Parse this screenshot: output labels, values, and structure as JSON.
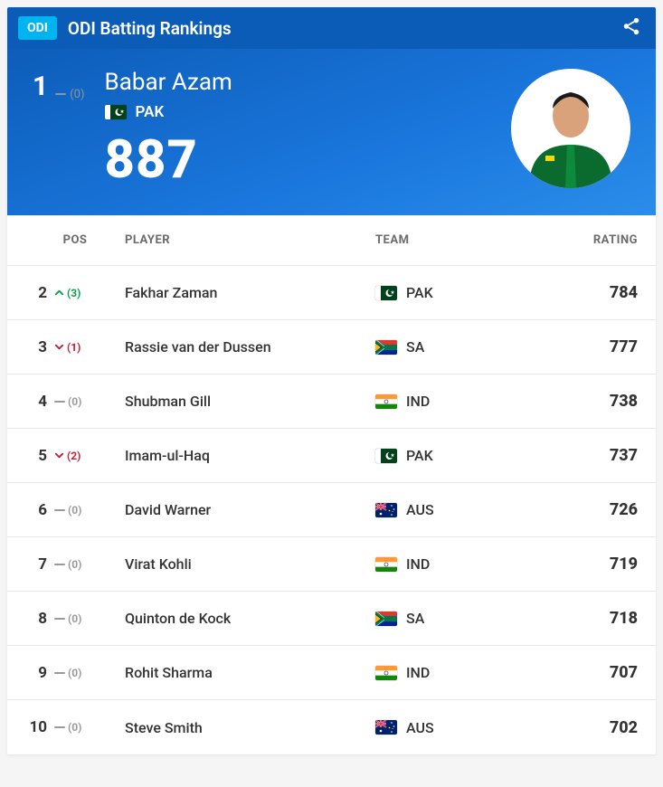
{
  "header": {
    "badge": "ODI",
    "title": "ODI Batting Rankings"
  },
  "hero": {
    "rank": "1",
    "move_dir": "same",
    "move_val": "(0)",
    "player": "Babar Azam",
    "team_code": "PAK",
    "team_flag": "PAK",
    "rating": "887"
  },
  "columns": {
    "pos": "POS",
    "player": "PLAYER",
    "team": "TEAM",
    "rating": "RATING"
  },
  "rows": [
    {
      "pos": "2",
      "move_dir": "up",
      "move_val": "(3)",
      "player": "Fakhar Zaman",
      "team_code": "PAK",
      "team_flag": "PAK",
      "rating": "784"
    },
    {
      "pos": "3",
      "move_dir": "down",
      "move_val": "(1)",
      "player": "Rassie van der Dussen",
      "team_code": "SA",
      "team_flag": "SA",
      "rating": "777"
    },
    {
      "pos": "4",
      "move_dir": "same",
      "move_val": "(0)",
      "player": "Shubman Gill",
      "team_code": "IND",
      "team_flag": "IND",
      "rating": "738"
    },
    {
      "pos": "5",
      "move_dir": "down",
      "move_val": "(2)",
      "player": "Imam-ul-Haq",
      "team_code": "PAK",
      "team_flag": "PAK",
      "rating": "737"
    },
    {
      "pos": "6",
      "move_dir": "same",
      "move_val": "(0)",
      "player": "David Warner",
      "team_code": "AUS",
      "team_flag": "AUS",
      "rating": "726"
    },
    {
      "pos": "7",
      "move_dir": "same",
      "move_val": "(0)",
      "player": "Virat Kohli",
      "team_code": "IND",
      "team_flag": "IND",
      "rating": "719"
    },
    {
      "pos": "8",
      "move_dir": "same",
      "move_val": "(0)",
      "player": "Quinton de Kock",
      "team_code": "SA",
      "team_flag": "SA",
      "rating": "718"
    },
    {
      "pos": "9",
      "move_dir": "same",
      "move_val": "(0)",
      "player": "Rohit Sharma",
      "team_code": "IND",
      "team_flag": "IND",
      "rating": "707"
    },
    {
      "pos": "10",
      "move_dir": "same",
      "move_val": "(0)",
      "player": "Steve Smith",
      "team_code": "AUS",
      "team_flag": "AUS",
      "rating": "702"
    }
  ],
  "colors": {
    "header_bg": "#0a5cb7",
    "badge_bg": "#00b4f0",
    "hero_grad_from": "#0d5db9",
    "hero_grad_to": "#2b8dea",
    "up": "#0a9e4d",
    "down": "#c81e3a",
    "same": "#9a9a9a",
    "text": "#333333",
    "muted": "#6b6b6b",
    "divider": "#e6e6e6"
  },
  "flags": {
    "PAK": {
      "bg": "#01411c",
      "stripe": "#ffffff"
    },
    "SA": {},
    "IND": {
      "top": "#ff9933",
      "mid": "#ffffff",
      "bot": "#138808",
      "wheel": "#000080"
    },
    "AUS": {
      "bg": "#012169",
      "star": "#ffffff",
      "cross": "#e4002b"
    }
  }
}
